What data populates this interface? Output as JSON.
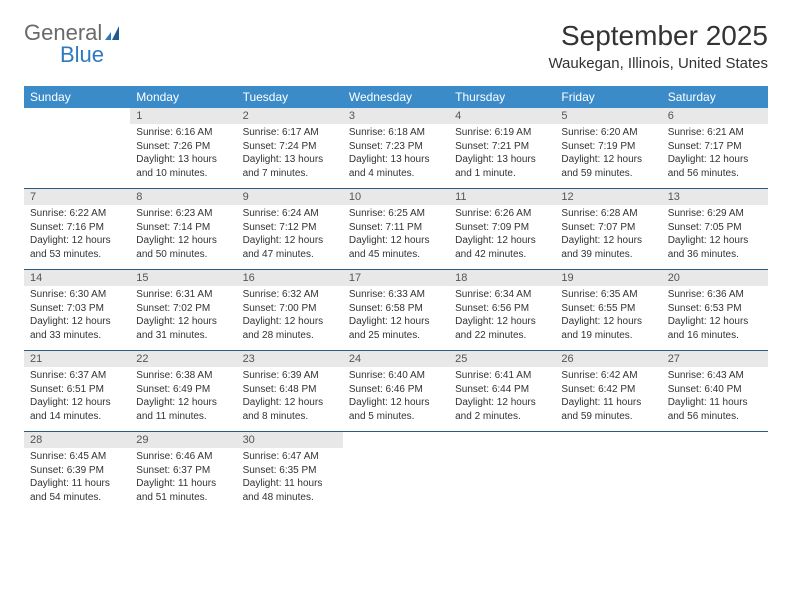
{
  "logo": {
    "text1": "General",
    "text2": "Blue"
  },
  "title": "September 2025",
  "location": "Waukegan, Illinois, United States",
  "colors": {
    "header_bg": "#3b8bc9",
    "header_text": "#ffffff",
    "daynum_bg": "#e8e8e8",
    "sep_line": "#2a5d85",
    "logo_gray": "#6a6a6a",
    "logo_blue": "#2e7ac0"
  },
  "day_labels": [
    "Sunday",
    "Monday",
    "Tuesday",
    "Wednesday",
    "Thursday",
    "Friday",
    "Saturday"
  ],
  "weeks": [
    [
      null,
      {
        "n": "1",
        "sr": "Sunrise: 6:16 AM",
        "ss": "Sunset: 7:26 PM",
        "dl": "Daylight: 13 hours and 10 minutes."
      },
      {
        "n": "2",
        "sr": "Sunrise: 6:17 AM",
        "ss": "Sunset: 7:24 PM",
        "dl": "Daylight: 13 hours and 7 minutes."
      },
      {
        "n": "3",
        "sr": "Sunrise: 6:18 AM",
        "ss": "Sunset: 7:23 PM",
        "dl": "Daylight: 13 hours and 4 minutes."
      },
      {
        "n": "4",
        "sr": "Sunrise: 6:19 AM",
        "ss": "Sunset: 7:21 PM",
        "dl": "Daylight: 13 hours and 1 minute."
      },
      {
        "n": "5",
        "sr": "Sunrise: 6:20 AM",
        "ss": "Sunset: 7:19 PM",
        "dl": "Daylight: 12 hours and 59 minutes."
      },
      {
        "n": "6",
        "sr": "Sunrise: 6:21 AM",
        "ss": "Sunset: 7:17 PM",
        "dl": "Daylight: 12 hours and 56 minutes."
      }
    ],
    [
      {
        "n": "7",
        "sr": "Sunrise: 6:22 AM",
        "ss": "Sunset: 7:16 PM",
        "dl": "Daylight: 12 hours and 53 minutes."
      },
      {
        "n": "8",
        "sr": "Sunrise: 6:23 AM",
        "ss": "Sunset: 7:14 PM",
        "dl": "Daylight: 12 hours and 50 minutes."
      },
      {
        "n": "9",
        "sr": "Sunrise: 6:24 AM",
        "ss": "Sunset: 7:12 PM",
        "dl": "Daylight: 12 hours and 47 minutes."
      },
      {
        "n": "10",
        "sr": "Sunrise: 6:25 AM",
        "ss": "Sunset: 7:11 PM",
        "dl": "Daylight: 12 hours and 45 minutes."
      },
      {
        "n": "11",
        "sr": "Sunrise: 6:26 AM",
        "ss": "Sunset: 7:09 PM",
        "dl": "Daylight: 12 hours and 42 minutes."
      },
      {
        "n": "12",
        "sr": "Sunrise: 6:28 AM",
        "ss": "Sunset: 7:07 PM",
        "dl": "Daylight: 12 hours and 39 minutes."
      },
      {
        "n": "13",
        "sr": "Sunrise: 6:29 AM",
        "ss": "Sunset: 7:05 PM",
        "dl": "Daylight: 12 hours and 36 minutes."
      }
    ],
    [
      {
        "n": "14",
        "sr": "Sunrise: 6:30 AM",
        "ss": "Sunset: 7:03 PM",
        "dl": "Daylight: 12 hours and 33 minutes."
      },
      {
        "n": "15",
        "sr": "Sunrise: 6:31 AM",
        "ss": "Sunset: 7:02 PM",
        "dl": "Daylight: 12 hours and 31 minutes."
      },
      {
        "n": "16",
        "sr": "Sunrise: 6:32 AM",
        "ss": "Sunset: 7:00 PM",
        "dl": "Daylight: 12 hours and 28 minutes."
      },
      {
        "n": "17",
        "sr": "Sunrise: 6:33 AM",
        "ss": "Sunset: 6:58 PM",
        "dl": "Daylight: 12 hours and 25 minutes."
      },
      {
        "n": "18",
        "sr": "Sunrise: 6:34 AM",
        "ss": "Sunset: 6:56 PM",
        "dl": "Daylight: 12 hours and 22 minutes."
      },
      {
        "n": "19",
        "sr": "Sunrise: 6:35 AM",
        "ss": "Sunset: 6:55 PM",
        "dl": "Daylight: 12 hours and 19 minutes."
      },
      {
        "n": "20",
        "sr": "Sunrise: 6:36 AM",
        "ss": "Sunset: 6:53 PM",
        "dl": "Daylight: 12 hours and 16 minutes."
      }
    ],
    [
      {
        "n": "21",
        "sr": "Sunrise: 6:37 AM",
        "ss": "Sunset: 6:51 PM",
        "dl": "Daylight: 12 hours and 14 minutes."
      },
      {
        "n": "22",
        "sr": "Sunrise: 6:38 AM",
        "ss": "Sunset: 6:49 PM",
        "dl": "Daylight: 12 hours and 11 minutes."
      },
      {
        "n": "23",
        "sr": "Sunrise: 6:39 AM",
        "ss": "Sunset: 6:48 PM",
        "dl": "Daylight: 12 hours and 8 minutes."
      },
      {
        "n": "24",
        "sr": "Sunrise: 6:40 AM",
        "ss": "Sunset: 6:46 PM",
        "dl": "Daylight: 12 hours and 5 minutes."
      },
      {
        "n": "25",
        "sr": "Sunrise: 6:41 AM",
        "ss": "Sunset: 6:44 PM",
        "dl": "Daylight: 12 hours and 2 minutes."
      },
      {
        "n": "26",
        "sr": "Sunrise: 6:42 AM",
        "ss": "Sunset: 6:42 PM",
        "dl": "Daylight: 11 hours and 59 minutes."
      },
      {
        "n": "27",
        "sr": "Sunrise: 6:43 AM",
        "ss": "Sunset: 6:40 PM",
        "dl": "Daylight: 11 hours and 56 minutes."
      }
    ],
    [
      {
        "n": "28",
        "sr": "Sunrise: 6:45 AM",
        "ss": "Sunset: 6:39 PM",
        "dl": "Daylight: 11 hours and 54 minutes."
      },
      {
        "n": "29",
        "sr": "Sunrise: 6:46 AM",
        "ss": "Sunset: 6:37 PM",
        "dl": "Daylight: 11 hours and 51 minutes."
      },
      {
        "n": "30",
        "sr": "Sunrise: 6:47 AM",
        "ss": "Sunset: 6:35 PM",
        "dl": "Daylight: 11 hours and 48 minutes."
      },
      null,
      null,
      null,
      null
    ]
  ]
}
